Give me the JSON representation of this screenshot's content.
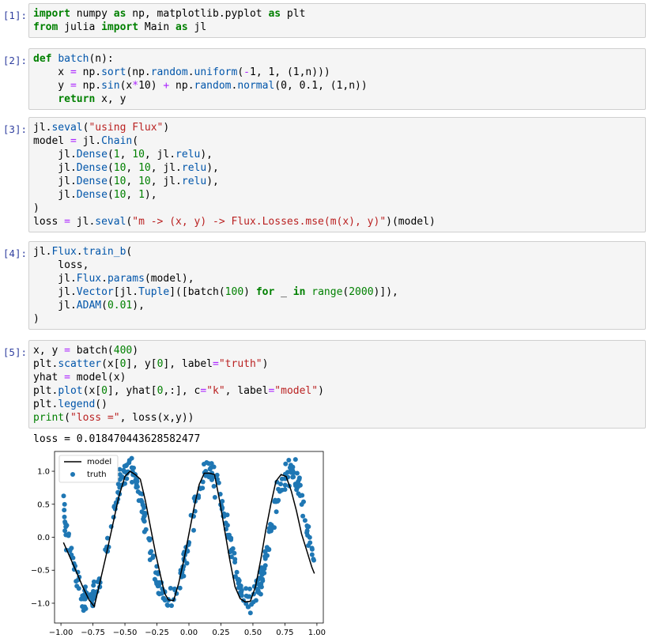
{
  "cells": [
    {
      "prompt": "[1]:",
      "lines": [
        [
          [
            "import",
            "kw"
          ],
          [
            " numpy ",
            ""
          ],
          [
            "as",
            "kw"
          ],
          [
            " np, matplotlib.pyplot ",
            ""
          ],
          [
            "as",
            "kw"
          ],
          [
            " plt",
            ""
          ]
        ],
        [
          [
            "from",
            "kw"
          ],
          [
            " julia ",
            ""
          ],
          [
            "import",
            "kw"
          ],
          [
            " Main ",
            ""
          ],
          [
            "as",
            "kw"
          ],
          [
            " jl",
            ""
          ]
        ]
      ]
    },
    {
      "prompt": "[2]:",
      "lines": [
        [
          [
            "def",
            "kw"
          ],
          [
            " ",
            ""
          ],
          [
            "batch",
            "fn"
          ],
          [
            "(n):",
            ""
          ]
        ],
        [
          [
            "    x ",
            ""
          ],
          [
            "=",
            "op"
          ],
          [
            " np.",
            ""
          ],
          [
            "sort",
            "fn"
          ],
          [
            "(np.",
            ""
          ],
          [
            "random",
            "fn"
          ],
          [
            ".",
            ""
          ],
          [
            "uniform",
            "fn"
          ],
          [
            "(",
            ""
          ],
          [
            "-",
            "op"
          ],
          [
            "1",
            ""
          ],
          [
            ", ",
            ""
          ],
          [
            "1",
            ""
          ],
          [
            ", (",
            ""
          ],
          [
            "1",
            ""
          ],
          [
            ",n)))",
            ""
          ]
        ],
        [
          [
            "    y ",
            ""
          ],
          [
            "=",
            "op"
          ],
          [
            " np.",
            ""
          ],
          [
            "sin",
            "fn"
          ],
          [
            "(x",
            ""
          ],
          [
            "*",
            "op"
          ],
          [
            "10",
            ""
          ],
          [
            ") ",
            ""
          ],
          [
            "+",
            "op"
          ],
          [
            " np.",
            ""
          ],
          [
            "random",
            "fn"
          ],
          [
            ".",
            ""
          ],
          [
            "normal",
            "fn"
          ],
          [
            "(",
            ""
          ],
          [
            "0",
            ""
          ],
          [
            ", ",
            ""
          ],
          [
            "0.1",
            ""
          ],
          [
            ", (",
            ""
          ],
          [
            "1",
            ""
          ],
          [
            ",n))",
            ""
          ]
        ],
        [
          [
            "    ",
            ""
          ],
          [
            "return",
            "kw"
          ],
          [
            " x, y",
            ""
          ]
        ]
      ]
    },
    {
      "prompt": "[3]:",
      "lines": [
        [
          [
            "jl.",
            ""
          ],
          [
            "seval",
            "fn"
          ],
          [
            "(",
            ""
          ],
          [
            "\"using Flux\"",
            "str"
          ],
          [
            ")",
            ""
          ]
        ],
        [
          [
            "model ",
            ""
          ],
          [
            "=",
            "op"
          ],
          [
            " jl.",
            ""
          ],
          [
            "Chain",
            "fn"
          ],
          [
            "(",
            ""
          ]
        ],
        [
          [
            "    jl.",
            ""
          ],
          [
            "Dense",
            "fn"
          ],
          [
            "(",
            ""
          ],
          [
            "1",
            "num"
          ],
          [
            ", ",
            ""
          ],
          [
            "10",
            "num"
          ],
          [
            ", jl.",
            ""
          ],
          [
            "relu",
            "fn"
          ],
          [
            "),",
            ""
          ]
        ],
        [
          [
            "    jl.",
            ""
          ],
          [
            "Dense",
            "fn"
          ],
          [
            "(",
            ""
          ],
          [
            "10",
            "num"
          ],
          [
            ", ",
            ""
          ],
          [
            "10",
            "num"
          ],
          [
            ", jl.",
            ""
          ],
          [
            "relu",
            "fn"
          ],
          [
            "),",
            ""
          ]
        ],
        [
          [
            "    jl.",
            ""
          ],
          [
            "Dense",
            "fn"
          ],
          [
            "(",
            ""
          ],
          [
            "10",
            "num"
          ],
          [
            ", ",
            ""
          ],
          [
            "10",
            "num"
          ],
          [
            ", jl.",
            ""
          ],
          [
            "relu",
            "fn"
          ],
          [
            "),",
            ""
          ]
        ],
        [
          [
            "    jl.",
            ""
          ],
          [
            "Dense",
            "fn"
          ],
          [
            "(",
            ""
          ],
          [
            "10",
            "num"
          ],
          [
            ", ",
            ""
          ],
          [
            "1",
            "num"
          ],
          [
            "),",
            ""
          ]
        ],
        [
          [
            ")",
            ""
          ]
        ],
        [
          [
            "loss ",
            ""
          ],
          [
            "=",
            "op"
          ],
          [
            " jl.",
            ""
          ],
          [
            "seval",
            "fn"
          ],
          [
            "(",
            ""
          ],
          [
            "\"m -> (x, y) -> Flux.Losses.mse(m(x), y)\"",
            "str"
          ],
          [
            ")(model)",
            ""
          ]
        ]
      ]
    },
    {
      "prompt": "[4]:",
      "lines": [
        [
          [
            "jl.",
            ""
          ],
          [
            "Flux",
            "fn"
          ],
          [
            ".",
            ""
          ],
          [
            "train_b",
            "fn"
          ],
          [
            "(",
            ""
          ]
        ],
        [
          [
            "    loss,",
            ""
          ]
        ],
        [
          [
            "    jl.",
            ""
          ],
          [
            "Flux",
            "fn"
          ],
          [
            ".",
            ""
          ],
          [
            "params",
            "fn"
          ],
          [
            "(model),",
            ""
          ]
        ],
        [
          [
            "    jl.",
            ""
          ],
          [
            "Vector",
            "fn"
          ],
          [
            "[jl.",
            ""
          ],
          [
            "Tuple",
            "fn"
          ],
          [
            "]([batch(",
            ""
          ],
          [
            "100",
            "num"
          ],
          [
            ") ",
            ""
          ],
          [
            "for",
            "kw"
          ],
          [
            " _ ",
            ""
          ],
          [
            "in",
            "kw"
          ],
          [
            " ",
            ""
          ],
          [
            "range",
            "bi"
          ],
          [
            "(",
            ""
          ],
          [
            "2000",
            "num"
          ],
          [
            ")]),",
            ""
          ]
        ],
        [
          [
            "    jl.",
            ""
          ],
          [
            "ADAM",
            "fn"
          ],
          [
            "(",
            ""
          ],
          [
            "0.01",
            "num"
          ],
          [
            "),",
            ""
          ]
        ],
        [
          [
            ")",
            ""
          ]
        ]
      ]
    },
    {
      "prompt": "[5]:",
      "lines": [
        [
          [
            "x, y ",
            ""
          ],
          [
            "=",
            "op"
          ],
          [
            " batch(",
            ""
          ],
          [
            "400",
            "num"
          ],
          [
            ")",
            ""
          ]
        ],
        [
          [
            "plt.",
            ""
          ],
          [
            "scatter",
            "fn"
          ],
          [
            "(x[",
            ""
          ],
          [
            "0",
            "num"
          ],
          [
            "], y[",
            ""
          ],
          [
            "0",
            "num"
          ],
          [
            "], label",
            ""
          ],
          [
            "=",
            "op"
          ],
          [
            "\"truth\"",
            "str"
          ],
          [
            ")",
            ""
          ]
        ],
        [
          [
            "yhat ",
            ""
          ],
          [
            "=",
            "op"
          ],
          [
            " model(x)",
            ""
          ]
        ],
        [
          [
            "plt.",
            ""
          ],
          [
            "plot",
            "fn"
          ],
          [
            "(x[",
            ""
          ],
          [
            "0",
            "num"
          ],
          [
            "], yhat[",
            ""
          ],
          [
            "0",
            "num"
          ],
          [
            ",:], c",
            ""
          ],
          [
            "=",
            "op"
          ],
          [
            "\"k\"",
            "str"
          ],
          [
            ", label",
            ""
          ],
          [
            "=",
            "op"
          ],
          [
            "\"model\"",
            "str"
          ],
          [
            ")",
            ""
          ]
        ],
        [
          [
            "plt.",
            ""
          ],
          [
            "legend",
            "fn"
          ],
          [
            "()",
            ""
          ]
        ],
        [
          [
            "print",
            "bi"
          ],
          [
            "(",
            ""
          ],
          [
            "\"loss =\"",
            "str"
          ],
          [
            ", loss(x,y))",
            ""
          ]
        ]
      ]
    }
  ],
  "output_text": "loss = 0.018470443628582477",
  "chart_data": {
    "type": "scatter",
    "xlim": [
      -1.05,
      1.05
    ],
    "ylim": [
      -1.3,
      1.3
    ],
    "xticks": [
      "−1.00",
      "−0.75",
      "−0.50",
      "−0.25",
      "0.00",
      "0.25",
      "0.50",
      "0.75",
      "1.00"
    ],
    "xtick_values": [
      -1.0,
      -0.75,
      -0.5,
      -0.25,
      0.0,
      0.25,
      0.5,
      0.75,
      1.0
    ],
    "yticks": [
      "−1.0",
      "−0.5",
      "0.0",
      "0.5",
      "1.0"
    ],
    "ytick_values": [
      -1.0,
      -0.5,
      0.0,
      0.5,
      1.0
    ],
    "legend": {
      "location": "top-left",
      "entries": [
        "model",
        "truth"
      ]
    },
    "colors": {
      "truth": "#1f77b4",
      "model": "#000000"
    },
    "series": [
      {
        "name": "model",
        "kind": "line",
        "x": [
          -0.98,
          -0.93,
          -0.88,
          -0.83,
          -0.78,
          -0.74,
          -0.7,
          -0.65,
          -0.6,
          -0.55,
          -0.5,
          -0.46,
          -0.42,
          -0.38,
          -0.34,
          -0.3,
          -0.26,
          -0.22,
          -0.19,
          -0.16,
          -0.12,
          -0.08,
          -0.04,
          0.0,
          0.04,
          0.08,
          0.12,
          0.16,
          0.2,
          0.24,
          0.28,
          0.32,
          0.36,
          0.4,
          0.44,
          0.48,
          0.52,
          0.56,
          0.6,
          0.64,
          0.68,
          0.72,
          0.76,
          0.8,
          0.84,
          0.88,
          0.92,
          0.96,
          0.98
        ],
        "y": [
          -0.08,
          -0.3,
          -0.52,
          -0.75,
          -0.95,
          -1.05,
          -0.72,
          -0.3,
          0.15,
          0.6,
          0.92,
          1.0,
          0.95,
          0.88,
          0.55,
          0.15,
          -0.25,
          -0.6,
          -0.85,
          -0.95,
          -0.96,
          -0.7,
          -0.35,
          0.05,
          0.45,
          0.8,
          0.97,
          0.97,
          0.95,
          0.55,
          0.1,
          -0.35,
          -0.75,
          -0.93,
          -0.98,
          -0.97,
          -0.75,
          -0.35,
          0.1,
          0.5,
          0.85,
          0.95,
          0.92,
          0.7,
          0.4,
          0.05,
          -0.2,
          -0.45,
          -0.55
        ]
      }
    ]
  }
}
